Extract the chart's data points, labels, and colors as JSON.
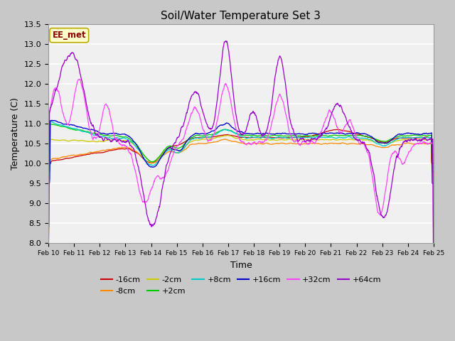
{
  "title": "Soil/Water Temperature Set 3",
  "xlabel": "Time",
  "ylabel": "Temperature (C)",
  "ylim": [
    8.0,
    13.5
  ],
  "annotation": "EE_met",
  "fig_bg_color": "#c8c8c8",
  "plot_bg_color": "#f0f0f0",
  "series": [
    {
      "label": "-16cm",
      "color": "#cc0000"
    },
    {
      "label": "-8cm",
      "color": "#ff8800"
    },
    {
      "label": "-2cm",
      "color": "#cccc00"
    },
    {
      "label": "+2cm",
      "color": "#00cc00"
    },
    {
      "label": "+8cm",
      "color": "#00cccc"
    },
    {
      "label": "+16cm",
      "color": "#0000cc"
    },
    {
      "label": "+32cm",
      "color": "#ff44ff"
    },
    {
      "label": "+64cm",
      "color": "#9900cc"
    }
  ],
  "n_points": 1440,
  "xtick_labels": [
    "Feb 10",
    "Feb 11",
    "Feb 12",
    "Feb 13",
    "Feb 14",
    "Feb 15",
    "Feb 16",
    "Feb 17",
    "Feb 18",
    "Feb 19",
    "Feb 20",
    "Feb 21",
    "Feb 22",
    "Feb 23",
    "Feb 24",
    "Feb 25"
  ],
  "yticks": [
    8.0,
    8.5,
    9.0,
    9.5,
    10.0,
    10.5,
    11.0,
    11.5,
    12.0,
    12.5,
    13.0,
    13.5
  ]
}
